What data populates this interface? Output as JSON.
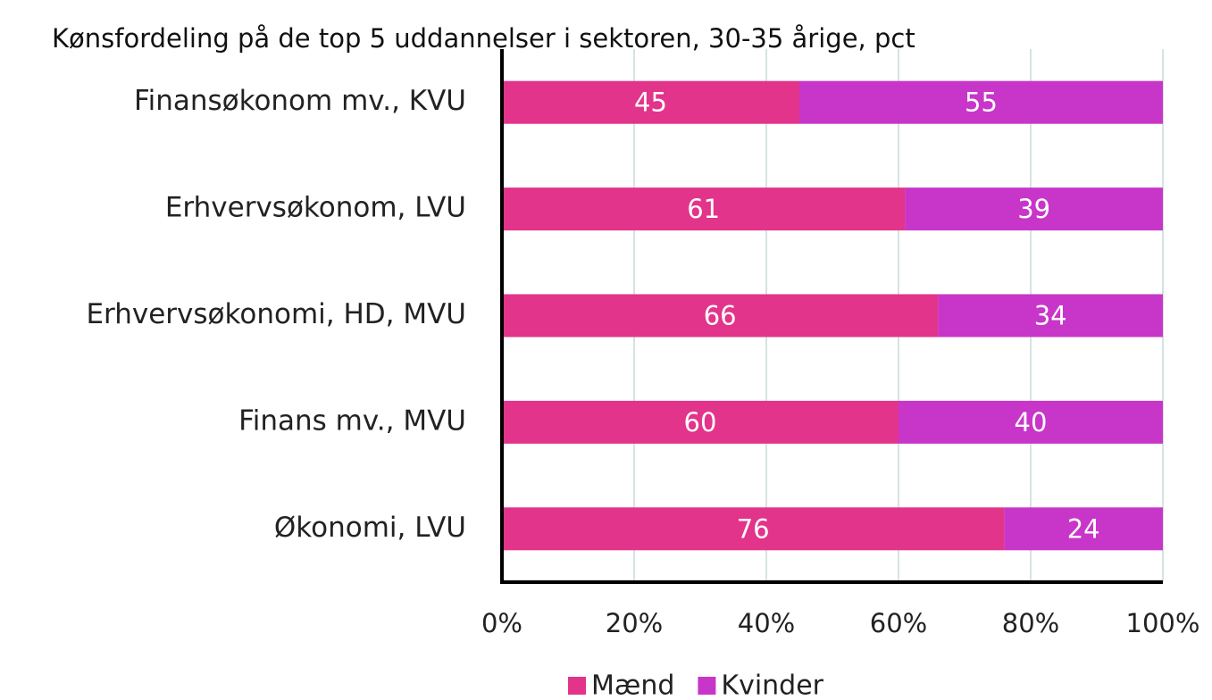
{
  "chart_data": {
    "type": "stacked_barh",
    "title": "Kønsfordeling på de top 5 uddannelser i sektoren, 30-35 årige, pct",
    "categories": [
      "Finansøkonom mv., KVU",
      "Erhvervsøkonom, LVU",
      "Erhvervsøkonomi, HD, MVU",
      "Finans mv., MVU",
      "Økonomi, LVU"
    ],
    "series": [
      {
        "name": "Mænd",
        "color": "#e2348a",
        "values": [
          45,
          61,
          66,
          60,
          76
        ]
      },
      {
        "name": "Kvinder",
        "color": "#c836c9",
        "values": [
          55,
          39,
          34,
          40,
          24
        ]
      }
    ],
    "xlim": [
      0,
      100
    ],
    "xticks": [
      {
        "value": 0,
        "label": "0%"
      },
      {
        "value": 20,
        "label": "20%"
      },
      {
        "value": 40,
        "label": "40%"
      },
      {
        "value": 60,
        "label": "60%"
      },
      {
        "value": 80,
        "label": "80%"
      },
      {
        "value": 100,
        "label": "100%"
      }
    ],
    "grid": true,
    "legend": "bottom"
  }
}
